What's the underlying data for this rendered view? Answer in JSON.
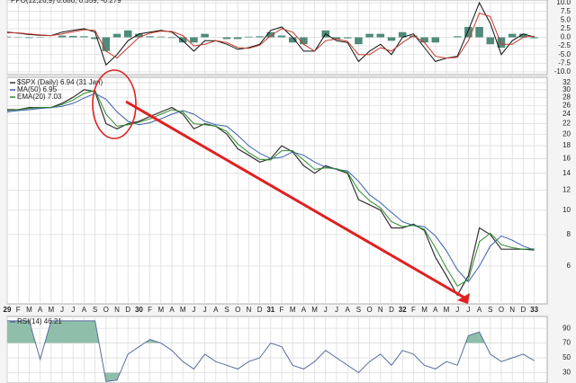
{
  "chart_data": [
    {
      "type": "line",
      "title": "PPO(12,26,9) 0.080, 0.359, -0.279",
      "ylim": [
        -10.8,
        10.8
      ],
      "yticks": [
        {
          "value": 10,
          "label": "10.0"
        },
        7.5,
        {
          "value": 5,
          "label": "5.0"
        },
        2.5,
        {
          "value": 0,
          "label": "0.0"
        },
        -2.5,
        {
          "value": -5,
          "label": "-5.0"
        },
        -7.5,
        {
          "value": -10,
          "label": "-10.0"
        }
      ],
      "grid": true,
      "series": [
        {
          "type": "bar",
          "color": "#4f8a7a",
          "values": [
            0.2,
            -0.1,
            -0.2,
            -0.1,
            0,
            0.5,
            0.4,
            0.3,
            -0.5,
            -4,
            1,
            2,
            1,
            0.3,
            0.2,
            -0.2,
            -1.5,
            -1.5,
            1,
            0,
            -0.5,
            -0.5,
            0.2,
            0.3,
            1.5,
            0.5,
            -1.5,
            -2,
            0,
            2,
            -0.5,
            -0.3,
            -2,
            1,
            1,
            -1,
            1.5,
            0.5,
            -1.5,
            -1.5,
            0,
            0.3,
            3,
            3,
            -2,
            -3,
            1,
            1,
            -0.279
          ]
        },
        {
          "color": "#111111",
          "values": [
            1.5,
            1.2,
            0.8,
            0.6,
            0.5,
            1.5,
            2,
            2.5,
            1.5,
            -8,
            -5,
            -1,
            1,
            1.5,
            2,
            1.5,
            -1,
            -4,
            -1,
            -1,
            -2,
            -3.5,
            -3,
            -2,
            2,
            3,
            0,
            -4,
            -4,
            1,
            -1,
            -1.5,
            -7,
            -4,
            -2,
            -5,
            0,
            1,
            -3,
            -7,
            -6,
            -5.5,
            2,
            10,
            4,
            -5,
            -1,
            1,
            0.08
          ]
        },
        {
          "color": "#c0392b",
          "values": [
            1.3,
            1.3,
            1,
            0.7,
            0.5,
            1,
            1.6,
            2.2,
            2,
            -4,
            -6,
            -3,
            0,
            1.2,
            1.8,
            1.7,
            0.5,
            -2.5,
            -2,
            -1,
            -1.5,
            -3,
            -3.2,
            -2.3,
            0.5,
            2.5,
            1.5,
            -2,
            -4,
            -1,
            -0.5,
            -1.2,
            -5,
            -5,
            -3,
            -4,
            -1.5,
            0.5,
            -1.5,
            -5.5,
            -6,
            -5.8,
            -1,
            7,
            6,
            -2,
            -2,
            0,
            0.359
          ]
        }
      ]
    },
    {
      "type": "line",
      "log_y": true,
      "grid": true,
      "categories": [
        "29",
        "F",
        "M",
        "A",
        "M",
        "J",
        "J",
        "A",
        "S",
        "O",
        "N",
        "D",
        "30",
        "F",
        "M",
        "A",
        "M",
        "J",
        "J",
        "A",
        "S",
        "O",
        "N",
        "D",
        "31",
        "F",
        "M",
        "A",
        "M",
        "J",
        "J",
        "A",
        "S",
        "O",
        "N",
        "D",
        "32",
        "F",
        "M",
        "A",
        "M",
        "J",
        "J",
        "A",
        "S",
        "O",
        "N",
        "D",
        "33"
      ],
      "ylim": [
        4.25,
        33.6
      ],
      "yticks": [
        32,
        30,
        28,
        26,
        24,
        22,
        20,
        18,
        16,
        14,
        12,
        10,
        8,
        6
      ],
      "series": [
        {
          "name": "$SPX (Daily) 6.94 (31 Jan)",
          "color": "#333333",
          "values": [
            25,
            25,
            25.5,
            25.5,
            25.5,
            26.5,
            28,
            30,
            29.5,
            22,
            21,
            22,
            22.5,
            23.5,
            24.5,
            25.5,
            24,
            21,
            22,
            21.5,
            20,
            17.5,
            16.5,
            15.5,
            16,
            18,
            17,
            15,
            14,
            15,
            14.5,
            14,
            11,
            10.5,
            10,
            8.5,
            8.5,
            8.8,
            8.3,
            6.5,
            5.5,
            4.6,
            5.5,
            8.5,
            8,
            7,
            7,
            7,
            6.94
          ]
        },
        {
          "name": "MA(50) 6.95",
          "color": "#3a5fb0",
          "values": [
            24.5,
            24.8,
            25,
            25.3,
            25.5,
            25.8,
            26.5,
            27.8,
            29,
            27.5,
            24.5,
            22.5,
            21.8,
            22.2,
            23,
            24,
            24.8,
            24,
            22.5,
            21.8,
            21.5,
            19.8,
            18,
            16.8,
            16,
            16.2,
            17,
            16.5,
            15.5,
            14.8,
            14.5,
            14.3,
            13,
            11.5,
            10.7,
            9.8,
            9,
            8.7,
            8.6,
            7.9,
            6.9,
            5.8,
            5.2,
            6,
            7.2,
            7.9,
            7.6,
            7.2,
            6.95
          ]
        },
        {
          "name": "EMA(20) 7.03",
          "color": "#2e8b2e",
          "values": [
            24.8,
            25,
            25.3,
            25.5,
            25.5,
            26.2,
            27.3,
            29,
            29.8,
            24,
            21.5,
            21.8,
            22.3,
            23,
            24,
            25,
            24.5,
            22,
            21.8,
            21.5,
            20.5,
            18.3,
            16.9,
            15.9,
            15.8,
            17.2,
            17.2,
            15.8,
            14.5,
            14.7,
            14.6,
            14.1,
            12,
            10.9,
            10.2,
            9,
            8.6,
            8.7,
            8.4,
            7.1,
            5.9,
            5,
            5.3,
            7.5,
            8.1,
            7.3,
            7.1,
            7,
            7.03
          ]
        }
      ]
    },
    {
      "type": "line",
      "grid": true,
      "fill_above": 70,
      "fill_below": 30,
      "fill_color": "#8fbfaa",
      "ylim": [
        16,
        106
      ],
      "yticks": [
        90,
        70,
        50,
        30
      ],
      "series": [
        {
          "name": "RSI(14) 46.21",
          "color": "#5a6e99",
          "values": [
            100,
            100,
            100,
            48,
            100,
            100,
            100,
            100,
            100,
            18,
            20,
            55,
            65,
            75,
            70,
            60,
            45,
            35,
            55,
            45,
            40,
            35,
            45,
            50,
            70,
            65,
            40,
            35,
            45,
            60,
            50,
            40,
            30,
            45,
            55,
            40,
            60,
            55,
            40,
            35,
            45,
            40,
            80,
            85,
            55,
            45,
            50,
            55,
            46.21
          ]
        }
      ]
    }
  ]
}
